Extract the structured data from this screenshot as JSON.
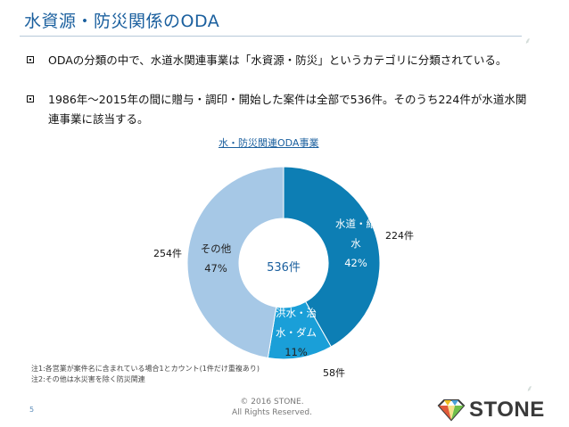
{
  "title": "水資源・防災関係のODA",
  "bullets": [
    "ODAの分類の中で、水道水関連事業は「水資源・防災」というカテゴリに分類されている。",
    "1986年〜2015年の間に贈与・調印・開始した案件は全部で536件。そのうち224件が水道水関連事業に該当する。"
  ],
  "chart_data": {
    "type": "pie",
    "title": "水・防災関連ODA事業",
    "center_label": "536件",
    "slices": [
      {
        "label_lines": [
          "水道・給",
          "水"
        ],
        "percent_label": "42%",
        "count_label": "224件",
        "value": 224,
        "color": "#0d7eb4"
      },
      {
        "label_lines": [
          "洪水・治",
          "水・ダム"
        ],
        "percent_label": "11%",
        "count_label": "58件",
        "value": 58,
        "color": "#1a9fd8"
      },
      {
        "label_lines": [
          "その他"
        ],
        "percent_label": "47%",
        "count_label": "254件",
        "value": 254,
        "color": "#a6c8e6"
      }
    ]
  },
  "notes": [
    "注1:各営業が案件名に含まれている場合1とカウント(1件だけ重複あり)",
    "注2:その他は水災害を除く防災関連"
  ],
  "footer": {
    "page_number": "5",
    "copyright_line1": "© 2016 STONE.",
    "copyright_line2": "All Rights Reserved.",
    "logo_text": "STONE",
    "logo_icon": "diamond-icon"
  }
}
